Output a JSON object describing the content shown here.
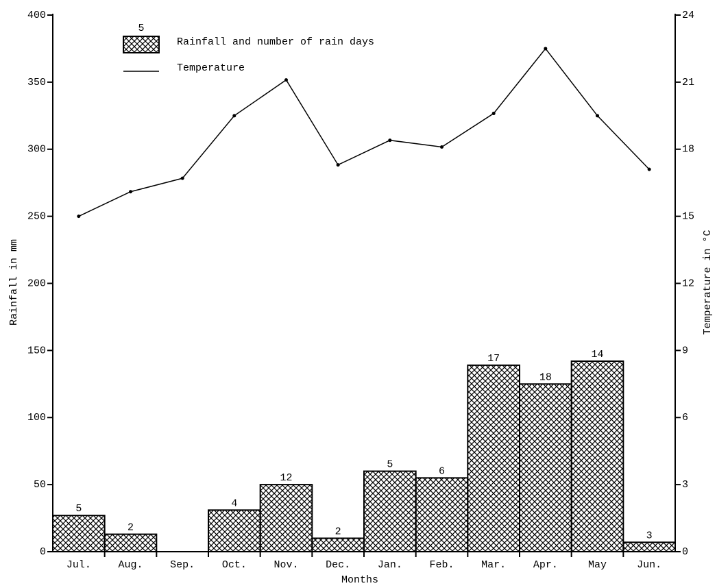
{
  "chart_data": {
    "type": "bar_line",
    "categories": [
      "Jul.",
      "Aug.",
      "Sep.",
      "Oct.",
      "Nov.",
      "Dec.",
      "Jan.",
      "Feb.",
      "Mar.",
      "Apr.",
      "May",
      "Jun."
    ],
    "series": [
      {
        "name": "Rainfall and number of rain days",
        "type": "bar",
        "color": "#000000",
        "values": [
          27,
          13,
          0,
          31,
          50,
          10,
          60,
          55,
          139,
          125,
          142,
          7
        ],
        "rain_days": [
          5,
          2,
          null,
          4,
          12,
          2,
          5,
          6,
          17,
          18,
          14,
          3
        ]
      },
      {
        "name": "Temperature",
        "type": "line",
        "axis": "y2",
        "color": "#000000",
        "values": [
          15.0,
          16.1,
          16.7,
          19.5,
          21.1,
          17.3,
          18.4,
          18.1,
          19.6,
          22.5,
          19.5,
          17.1
        ]
      }
    ],
    "legend_sample_label": "5",
    "xlabel": "Months",
    "ylabel": "Rainfall in mm",
    "y2label": "Temperature in °C",
    "ylim": [
      0,
      400
    ],
    "yticks": [
      0,
      50,
      100,
      150,
      200,
      250,
      300,
      350,
      400
    ],
    "y2lim": [
      0,
      24
    ],
    "y2ticks": [
      0,
      3,
      6,
      9,
      12,
      15,
      18,
      21,
      24
    ],
    "legend": "top-left"
  }
}
